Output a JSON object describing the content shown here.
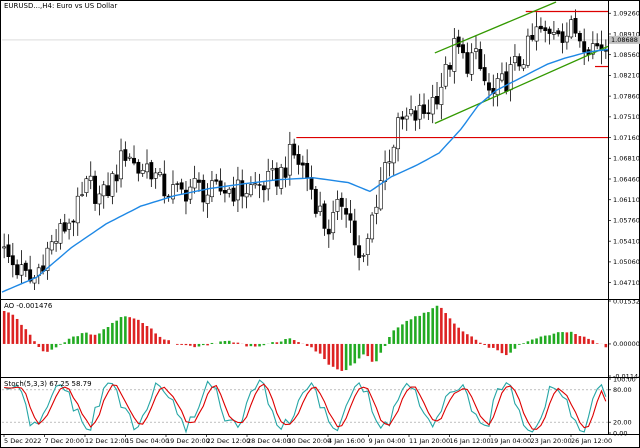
{
  "title": "EURUSD...,H4: Euro vs US Dollar",
  "price_panel": {
    "yticks": [
      "1.09260",
      "1.08910",
      "1.08560",
      "1.08210",
      "1.07860",
      "1.07510",
      "1.07160",
      "1.06810",
      "1.06460",
      "1.06110",
      "1.05760",
      "1.05410",
      "1.05060",
      "1.04710"
    ],
    "current_price": "1.08688"
  },
  "ao_panel": {
    "label": "AO -0.001476",
    "yticks": [
      "0.015326",
      "0.000000",
      "-0.011440"
    ]
  },
  "stoch_panel": {
    "label": "Stoch(5,3,3) 67.25 58.79",
    "yticks": [
      "100.00",
      "80.00",
      "20.00",
      "0.00"
    ]
  },
  "xticks": [
    "5 Dec 2022",
    "7 Dec 20:00",
    "12 Dec 12:00",
    "15 Dec 04:00",
    "19 Dec 20:00",
    "22 Dec 12:00",
    "28 Dec 04:00",
    "30 Dec 20:00",
    "4 Jan 16:00",
    "9 Jan 04:00",
    "11 Jan 20:00",
    "16 Jan 12:00",
    "19 Jan 04:00",
    "23 Jan 20:00",
    "26 Jan 12:00"
  ],
  "colors": {
    "bull": "#22aa22",
    "bear": "#dd2222",
    "ma": "#1e88e5",
    "hline": "#dd0000",
    "channel": "#339900",
    "stoch_main": "#26a6a6",
    "stoch_signal": "#dd0000"
  },
  "chart_data": {
    "type": "candlestick",
    "timeframe": "H4",
    "symbol": "EURUSD",
    "ylim": [
      1.0445,
      1.0945
    ],
    "close_path": [
      [
        0,
        1.0525
      ],
      [
        4,
        1.049
      ],
      [
        7,
        1.047
      ],
      [
        10,
        1.052
      ],
      [
        14,
        1.056
      ],
      [
        18,
        1.06
      ],
      [
        20,
        1.064
      ],
      [
        23,
        1.061
      ],
      [
        26,
        1.065
      ],
      [
        29,
        1.07
      ],
      [
        31,
        1.066
      ],
      [
        34,
        1.067
      ],
      [
        37,
        1.063
      ],
      [
        41,
        1.062
      ],
      [
        44,
        1.0635
      ],
      [
        48,
        1.062
      ],
      [
        52,
        1.063
      ],
      [
        55,
        1.0625
      ],
      [
        59,
        1.0635
      ],
      [
        62,
        1.064
      ],
      [
        65,
        1.066
      ],
      [
        67,
        1.069
      ],
      [
        70,
        1.066
      ],
      [
        73,
        1.06
      ],
      [
        75,
        1.056
      ],
      [
        77,
        1.058
      ],
      [
        79,
        1.062
      ],
      [
        81,
        1.056
      ],
      [
        82,
        1.052
      ],
      [
        83,
        1.049
      ],
      [
        84,
        1.052
      ],
      [
        86,
        1.06
      ],
      [
        88,
        1.066
      ],
      [
        90,
        1.07
      ],
      [
        92,
        1.074
      ],
      [
        95,
        1.075
      ],
      [
        98,
        1.076
      ],
      [
        101,
        1.08
      ],
      [
        103,
        1.083
      ],
      [
        104,
        1.086
      ],
      [
        105,
        1.087
      ],
      [
        107,
        1.084
      ],
      [
        109,
        1.0855
      ],
      [
        111,
        1.082
      ],
      [
        113,
        1.078
      ],
      [
        116,
        1.081
      ],
      [
        118,
        1.083
      ],
      [
        120,
        1.085
      ],
      [
        122,
        1.087
      ],
      [
        124,
        1.09
      ],
      [
        126,
        1.088
      ],
      [
        128,
        1.091
      ],
      [
        130,
        1.089
      ],
      [
        132,
        1.09
      ],
      [
        134,
        1.0885
      ],
      [
        137,
        1.087
      ],
      [
        140,
        1.0869
      ]
    ],
    "ma_path": [
      [
        0,
        1.0455
      ],
      [
        8,
        1.048
      ],
      [
        16,
        1.053
      ],
      [
        24,
        1.057
      ],
      [
        32,
        1.06
      ],
      [
        40,
        1.0618
      ],
      [
        48,
        1.063
      ],
      [
        56,
        1.0638
      ],
      [
        64,
        1.0645
      ],
      [
        72,
        1.0648
      ],
      [
        80,
        1.064
      ],
      [
        85,
        1.0625
      ],
      [
        90,
        1.065
      ],
      [
        96,
        1.067
      ],
      [
        101,
        1.069
      ],
      [
        106,
        1.073
      ],
      [
        110,
        1.077
      ],
      [
        114,
        1.0795
      ],
      [
        118,
        1.081
      ],
      [
        122,
        1.0825
      ],
      [
        126,
        1.084
      ],
      [
        130,
        1.085
      ],
      [
        135,
        1.086
      ],
      [
        140,
        1.0865
      ]
    ],
    "horizontal_levels": [
      {
        "price": 1.0716,
        "from": 68,
        "to": 140
      },
      {
        "price": 1.0836,
        "from": 137,
        "to": 140
      },
      {
        "price": 1.0929,
        "from": 121,
        "to": 140
      }
    ],
    "channel_lines": [
      {
        "from": [
          100,
          1.0859
        ],
        "to": [
          128,
          1.0945
        ]
      },
      {
        "from": [
          100,
          1.074
        ],
        "to": [
          140,
          1.087
        ]
      }
    ],
    "ao_values": [
      [
        0,
        0.012
      ],
      [
        3,
        0.01
      ],
      [
        6,
        0.004
      ],
      [
        8,
        0.0
      ],
      [
        10,
        -0.003
      ],
      [
        13,
        -0.001
      ],
      [
        16,
        0.002
      ],
      [
        19,
        0.004
      ],
      [
        22,
        0.003
      ],
      [
        25,
        0.007
      ],
      [
        28,
        0.01
      ],
      [
        31,
        0.009
      ],
      [
        34,
        0.006
      ],
      [
        37,
        0.002
      ],
      [
        40,
        0.0
      ],
      [
        44,
        -0.001
      ],
      [
        48,
        0.0
      ],
      [
        52,
        0.001
      ],
      [
        55,
        0.0
      ],
      [
        58,
        -0.001
      ],
      [
        61,
        0.0
      ],
      [
        64,
        0.001
      ],
      [
        67,
        0.002
      ],
      [
        70,
        0.0
      ],
      [
        73,
        -0.003
      ],
      [
        76,
        -0.008
      ],
      [
        79,
        -0.01
      ],
      [
        82,
        -0.006
      ],
      [
        84,
        -0.003
      ],
      [
        86,
        -0.008
      ],
      [
        88,
        -0.002
      ],
      [
        90,
        0.004
      ],
      [
        93,
        0.008
      ],
      [
        96,
        0.01
      ],
      [
        99,
        0.012
      ],
      [
        101,
        0.014
      ],
      [
        103,
        0.01
      ],
      [
        105,
        0.006
      ],
      [
        108,
        0.003
      ],
      [
        111,
        0.0
      ],
      [
        114,
        -0.002
      ],
      [
        117,
        -0.004
      ],
      [
        120,
        0.0
      ],
      [
        123,
        0.002
      ],
      [
        126,
        0.003
      ],
      [
        129,
        0.004
      ],
      [
        132,
        0.004
      ],
      [
        135,
        0.002
      ],
      [
        138,
        0.0
      ],
      [
        140,
        -0.0015
      ]
    ],
    "stoch_levels": [
      80,
      20
    ],
    "stoch_range": [
      0,
      100
    ],
    "current_stoch": {
      "main": 67.25,
      "signal": 58.79
    }
  }
}
